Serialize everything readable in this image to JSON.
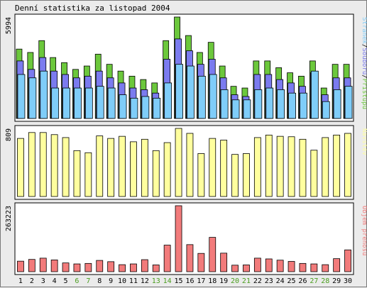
{
  "title": "Denní statistika za listopad 2004",
  "colors": {
    "background": "#ebebeb",
    "panel_bg": "#ffffff",
    "hits": "#6cc83c",
    "files": "#7b7bef",
    "pages": "#7fcdf9",
    "visits": "#ffff9e",
    "kbytes": "#f27b7b",
    "day_weekday": "#000000",
    "day_weekend": "#4a9e1e"
  },
  "chart_data": [
    {
      "type": "bar",
      "name": "requests",
      "axis_max_label": "5994",
      "ylim": [
        0,
        5994
      ],
      "legend": [
        {
          "label": "Stránek",
          "color": "#7fcdf9"
        },
        {
          "label": "/",
          "color": "#000000"
        },
        {
          "label": "Souborů",
          "color": "#7b7bef"
        },
        {
          "label": "/",
          "color": "#000000"
        },
        {
          "label": "Přístupů",
          "color": "#6cc83c"
        }
      ],
      "x": [
        1,
        2,
        3,
        4,
        5,
        6,
        7,
        8,
        9,
        10,
        11,
        12,
        13,
        14,
        15,
        16,
        17,
        18,
        19,
        20,
        21,
        22,
        23,
        24,
        25,
        26,
        27,
        28,
        29,
        30
      ],
      "series": [
        {
          "name": "Přístupů",
          "values": [
            4100,
            3900,
            4600,
            3600,
            3300,
            2900,
            3100,
            3800,
            3200,
            2800,
            2500,
            2300,
            2100,
            4600,
            5994,
            4900,
            3900,
            4500,
            3100,
            1900,
            1800,
            3400,
            3400,
            3000,
            2700,
            2500,
            3400,
            1800,
            3200,
            3200
          ]
        },
        {
          "name": "Souborů",
          "values": [
            3400,
            2900,
            3600,
            2800,
            2600,
            2400,
            2500,
            2800,
            2400,
            2100,
            1800,
            1700,
            1500,
            3500,
            4700,
            4000,
            3200,
            3500,
            2400,
            1400,
            1300,
            2600,
            2600,
            2300,
            2100,
            1900,
            2700,
            1400,
            2400,
            2400
          ]
        },
        {
          "name": "Stránek",
          "values": [
            2600,
            2400,
            2800,
            1800,
            1800,
            1800,
            1800,
            1900,
            1800,
            1400,
            1200,
            1300,
            1200,
            2100,
            3200,
            3100,
            2500,
            2600,
            1700,
            1100,
            1100,
            1700,
            1800,
            1700,
            1500,
            1500,
            2800,
            1000,
            1700,
            1900
          ]
        }
      ]
    },
    {
      "type": "bar",
      "name": "visits",
      "axis_max_label": "809",
      "ylim": [
        0,
        809
      ],
      "legend": [
        {
          "label": "Návštěv",
          "color": "#ffff9e"
        }
      ],
      "x": [
        1,
        2,
        3,
        4,
        5,
        6,
        7,
        8,
        9,
        10,
        11,
        12,
        13,
        14,
        15,
        16,
        17,
        18,
        19,
        20,
        21,
        22,
        23,
        24,
        25,
        26,
        27,
        28,
        29,
        30
      ],
      "series": [
        {
          "name": "Návštěv",
          "values": [
            690,
            760,
            760,
            735,
            700,
            545,
            520,
            720,
            690,
            715,
            650,
            680,
            545,
            640,
            809,
            750,
            510,
            690,
            670,
            500,
            510,
            700,
            730,
            715,
            710,
            680,
            550,
            700,
            730,
            750
          ]
        }
      ]
    },
    {
      "type": "bar",
      "name": "kbytes",
      "axis_max_label": "263223",
      "ylim": [
        0,
        263223
      ],
      "legend": [
        {
          "label": "Objem přenosu",
          "color": "#f27b7b"
        }
      ],
      "x": [
        1,
        2,
        3,
        4,
        5,
        6,
        7,
        8,
        9,
        10,
        11,
        12,
        13,
        14,
        15,
        16,
        17,
        18,
        19,
        20,
        21,
        22,
        23,
        24,
        25,
        26,
        27,
        28,
        29,
        30
      ],
      "series": [
        {
          "name": "Objem přenosu",
          "values": [
            42000,
            49000,
            54000,
            47000,
            35000,
            31000,
            33000,
            45000,
            40000,
            28000,
            31000,
            48000,
            27000,
            106000,
            263223,
            108000,
            73000,
            137000,
            74000,
            26000,
            27000,
            54000,
            51000,
            46000,
            41000,
            33000,
            31000,
            28000,
            52000,
            87000
          ]
        }
      ]
    }
  ],
  "days": {
    "labels": [
      "1",
      "2",
      "3",
      "4",
      "5",
      "6",
      "7",
      "8",
      "9",
      "10",
      "11",
      "12",
      "13",
      "14",
      "15",
      "16",
      "17",
      "18",
      "19",
      "20",
      "21",
      "22",
      "23",
      "24",
      "25",
      "26",
      "27",
      "28",
      "29",
      "30"
    ],
    "weekend": [
      6,
      7,
      13,
      14,
      20,
      21,
      27,
      28
    ]
  }
}
